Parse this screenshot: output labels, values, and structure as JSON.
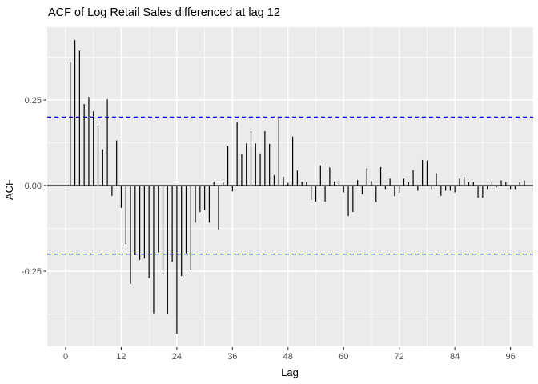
{
  "title": "ACF of Log Retail Sales differenced at lag 12",
  "chart_data": {
    "type": "bar",
    "title": "ACF of Log Retail Sales differenced at lag 12",
    "xlabel": "Lag",
    "ylabel": "ACF",
    "x_tick_labels": [
      "0",
      "12",
      "24",
      "36",
      "48",
      "60",
      "72",
      "84",
      "96"
    ],
    "x_tick_values": [
      0,
      12,
      24,
      36,
      48,
      60,
      72,
      84,
      96
    ],
    "x_minor_values": [
      6,
      18,
      30,
      42,
      54,
      66,
      78,
      90
    ],
    "y_tick_labels": [
      "0.25",
      "0.00",
      "-0.25"
    ],
    "y_tick_values": [
      0.25,
      0.0,
      -0.25
    ],
    "y_minor_values": [
      0.375,
      0.125,
      -0.125,
      -0.375
    ],
    "xlim": [
      -3.97,
      100.9
    ],
    "ylim": [
      -0.4696,
      0.4626
    ],
    "grid": "on",
    "legend": "none",
    "confidence_bands": [
      0.2,
      -0.2
    ],
    "lag_start": 1,
    "acf_values": [
      0.36,
      0.425,
      0.394,
      0.238,
      0.259,
      0.217,
      0.176,
      0.106,
      0.252,
      -0.03,
      0.132,
      -0.065,
      -0.171,
      -0.287,
      -0.203,
      -0.217,
      -0.213,
      -0.27,
      -0.373,
      -0.195,
      -0.26,
      -0.374,
      -0.222,
      -0.433,
      -0.264,
      -0.198,
      -0.245,
      -0.108,
      -0.077,
      -0.072,
      -0.108,
      0.011,
      -0.128,
      0.011,
      0.115,
      -0.017,
      0.186,
      0.092,
      0.123,
      0.159,
      0.123,
      0.094,
      0.159,
      0.122,
      0.03,
      0.196,
      0.026,
      0.008,
      0.143,
      0.044,
      0.011,
      0.01,
      -0.042,
      -0.047,
      0.059,
      -0.047,
      0.053,
      0.012,
      0.014,
      -0.02,
      -0.089,
      -0.077,
      0.016,
      -0.025,
      0.05,
      0.013,
      -0.048,
      0.054,
      -0.01,
      0.02,
      -0.031,
      -0.02,
      0.02,
      0.01,
      0.045,
      -0.015,
      0.075,
      0.073,
      -0.01,
      0.036,
      -0.03,
      -0.015,
      -0.015,
      -0.02,
      0.02,
      0.025,
      0.01,
      0.01,
      -0.035,
      -0.035,
      -0.01,
      0.01,
      -0.005,
      0.015,
      0.01,
      -0.01,
      -0.01,
      0.01,
      0.015
    ],
    "colors": {
      "panel_bg": "#EBEBEB",
      "outer_bg": "#FFFFFF",
      "grid_major": "#FFFFFF",
      "grid_minor": "#FFFFFF",
      "bar": "#000000",
      "zero_line": "#000000",
      "confidence_band": "#0000EE",
      "tick_label": "#4D4D4D",
      "axis_title": "#000000",
      "title": "#000000",
      "tick_mark": "#333333"
    }
  }
}
